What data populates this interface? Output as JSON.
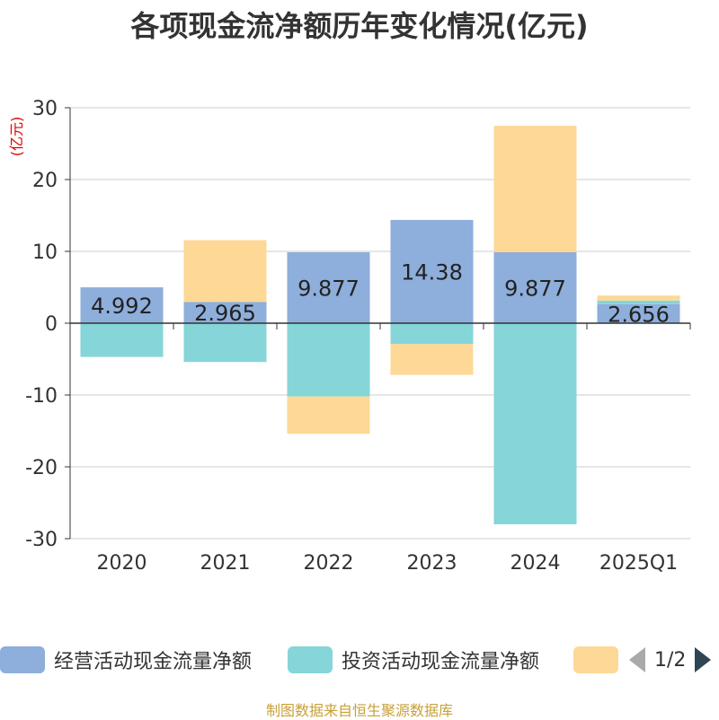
{
  "chart_data": {
    "type": "bar",
    "stacked": true,
    "title": "各项现金流净额历年变化情况(亿元)",
    "ylabel": "(亿元)",
    "ylim": [
      -30,
      30
    ],
    "yticks": [
      30,
      20,
      10,
      0,
      -10,
      -20,
      -30
    ],
    "categories": [
      "2020",
      "2021",
      "2022",
      "2023",
      "2024",
      "2025Q1"
    ],
    "series": [
      {
        "name": "经营活动现金流量净额",
        "color": "#8eaedb",
        "values": [
          4.992,
          2.965,
          9.877,
          14.38,
          9.877,
          2.656
        ],
        "labels": [
          "4.992",
          "2.965",
          "9.877",
          "14.38",
          "9.877",
          "2.656"
        ]
      },
      {
        "name": "投资活动现金流量净额",
        "color": "#86d5d8",
        "values": [
          -4.7,
          -5.4,
          -10.2,
          -2.9,
          -28.0,
          0.5
        ]
      },
      {
        "name": "",
        "color": "#fdd896",
        "values": [
          0,
          8.6,
          -5.2,
          -4.3,
          17.6,
          0.7
        ]
      }
    ]
  },
  "legend": {
    "items": [
      {
        "label": "经营活动现金流量净额",
        "color": "#8eaedb"
      },
      {
        "label": "投资活动现金流量净额",
        "color": "#86d5d8"
      },
      {
        "label": "",
        "color": "#fdd896"
      }
    ],
    "page_text": "1/2"
  },
  "source": "制图数据来自恒生聚源数据库"
}
